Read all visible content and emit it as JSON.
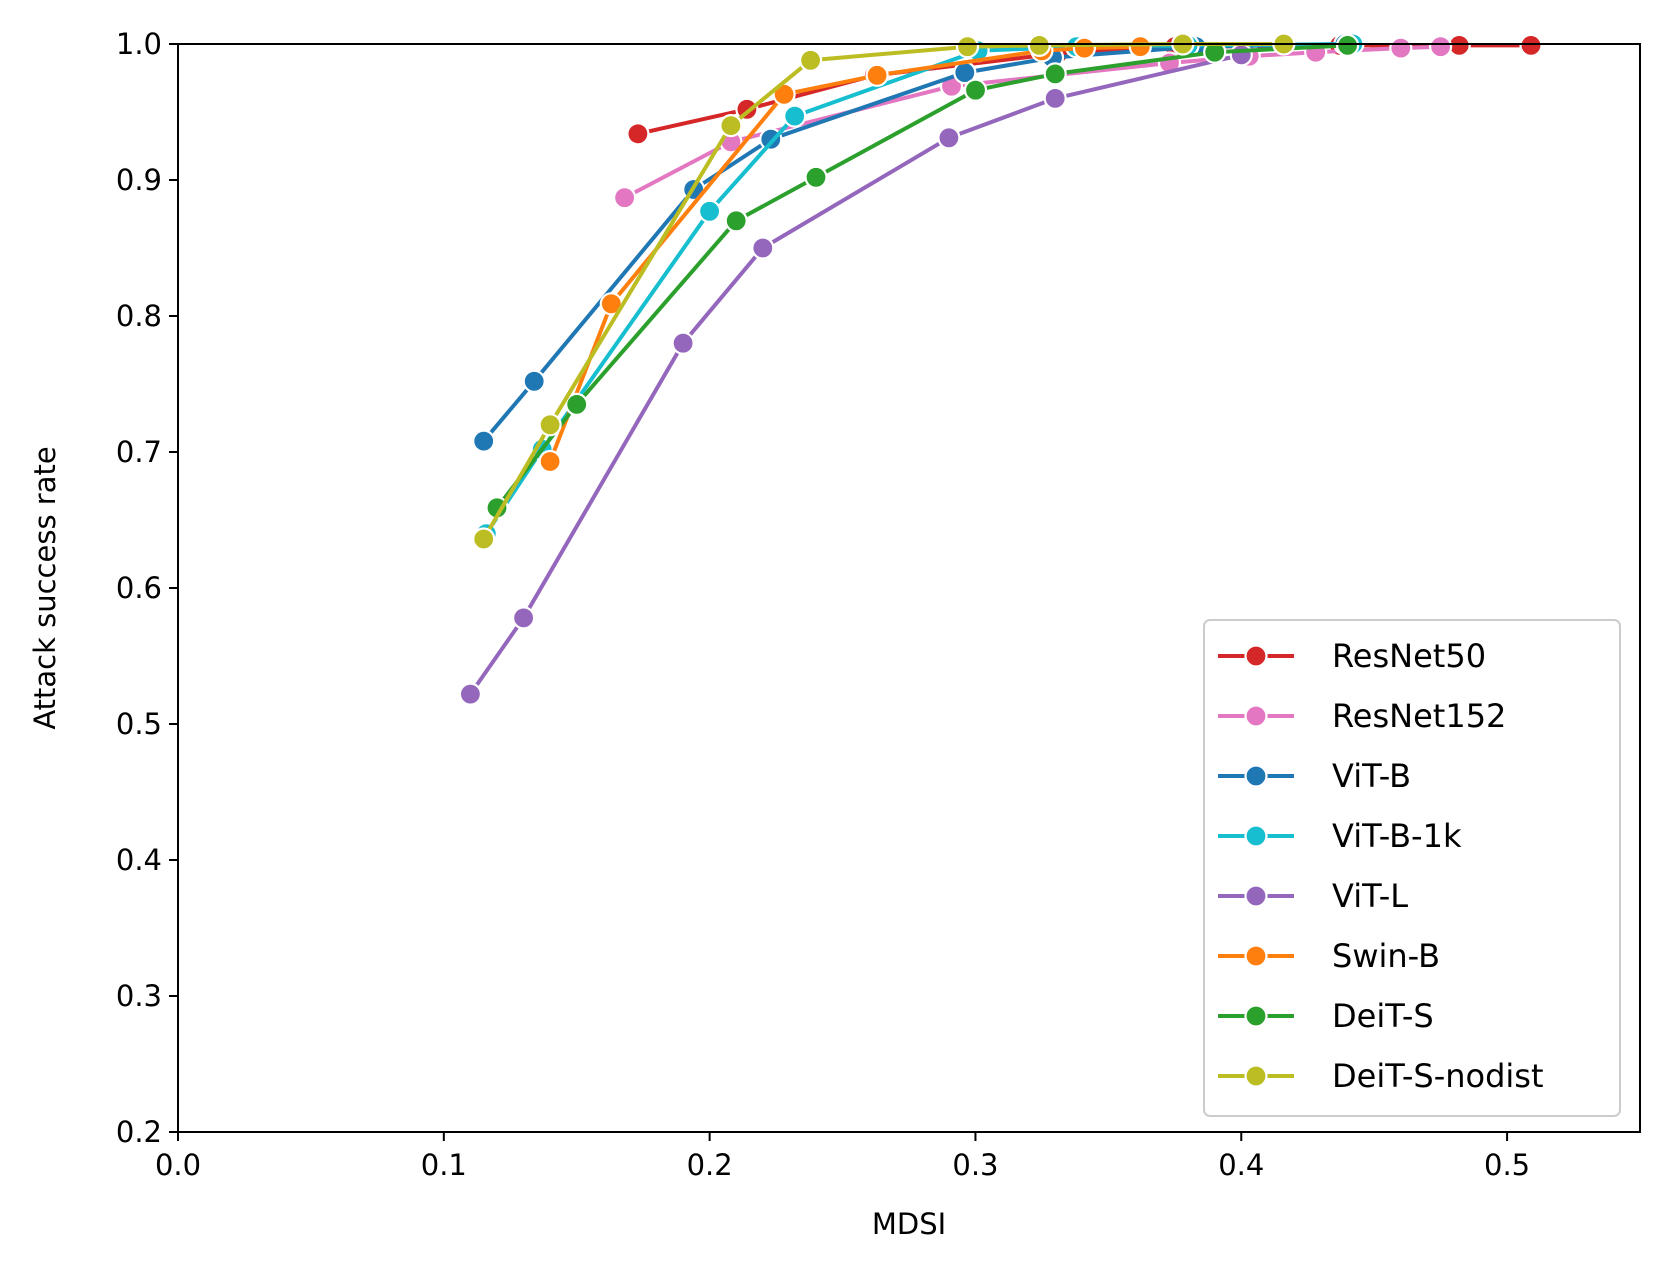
{
  "chart_data": {
    "type": "line",
    "xlabel": "MDSI",
    "ylabel": "Attack success rate",
    "xlim": [
      0.0,
      0.55
    ],
    "ylim": [
      0.2,
      1.0
    ],
    "xticks": [
      0.0,
      0.1,
      0.2,
      0.3,
      0.4,
      0.5
    ],
    "xtick_labels": [
      "0.0",
      "0.1",
      "0.2",
      "0.3",
      "0.4",
      "0.5"
    ],
    "yticks": [
      0.2,
      0.3,
      0.4,
      0.5,
      0.6,
      0.7,
      0.8,
      0.9,
      1.0
    ],
    "ytick_labels": [
      "0.2",
      "0.3",
      "0.4",
      "0.5",
      "0.6",
      "0.7",
      "0.8",
      "0.9",
      "1.0"
    ],
    "grid": false,
    "legend_position": "lower-right",
    "series": [
      {
        "name": "ResNet50",
        "color": "#d62728",
        "x": [
          0.173,
          0.214,
          0.262,
          0.331,
          0.375,
          0.437,
          0.482,
          0.509
        ],
        "y": [
          0.934,
          0.952,
          0.977,
          0.993,
          0.998,
          0.999,
          0.999,
          0.999
        ]
      },
      {
        "name": "ResNet152",
        "color": "#e377c2",
        "x": [
          0.168,
          0.208,
          0.291,
          0.373,
          0.403,
          0.428,
          0.46,
          0.475
        ],
        "y": [
          0.887,
          0.928,
          0.969,
          0.986,
          0.991,
          0.994,
          0.997,
          0.998
        ]
      },
      {
        "name": "ViT-B",
        "color": "#1f77b4",
        "x": [
          0.115,
          0.134,
          0.194,
          0.223,
          0.296,
          0.329,
          0.383,
          0.439
        ],
        "y": [
          0.708,
          0.752,
          0.893,
          0.93,
          0.979,
          0.99,
          0.998,
          1.0
        ]
      },
      {
        "name": "ViT-B-1k",
        "color": "#17becf",
        "x": [
          0.116,
          0.137,
          0.2,
          0.232,
          0.301,
          0.338,
          0.38,
          0.442
        ],
        "y": [
          0.64,
          0.702,
          0.877,
          0.947,
          0.995,
          0.998,
          0.999,
          1.0
        ]
      },
      {
        "name": "ViT-L",
        "color": "#9467bd",
        "x": [
          0.11,
          0.13,
          0.19,
          0.22,
          0.29,
          0.33,
          0.4
        ],
        "y": [
          0.522,
          0.578,
          0.78,
          0.85,
          0.931,
          0.96,
          0.992
        ]
      },
      {
        "name": "Swin-B",
        "color": "#ff7f0e",
        "x": [
          0.14,
          0.163,
          0.228,
          0.263,
          0.325,
          0.341,
          0.362
        ],
        "y": [
          0.693,
          0.809,
          0.963,
          0.977,
          0.995,
          0.997,
          0.998
        ]
      },
      {
        "name": "DeiT-S",
        "color": "#2ca02c",
        "x": [
          0.12,
          0.15,
          0.21,
          0.24,
          0.3,
          0.33,
          0.39,
          0.44
        ],
        "y": [
          0.659,
          0.735,
          0.87,
          0.902,
          0.966,
          0.978,
          0.994,
          0.999
        ]
      },
      {
        "name": "DeiT-S-nodist",
        "color": "#bcbd22",
        "x": [
          0.115,
          0.14,
          0.208,
          0.238,
          0.297,
          0.324,
          0.378,
          0.416
        ],
        "y": [
          0.636,
          0.72,
          0.94,
          0.988,
          0.998,
          0.999,
          1.0,
          1.0
        ]
      }
    ]
  }
}
